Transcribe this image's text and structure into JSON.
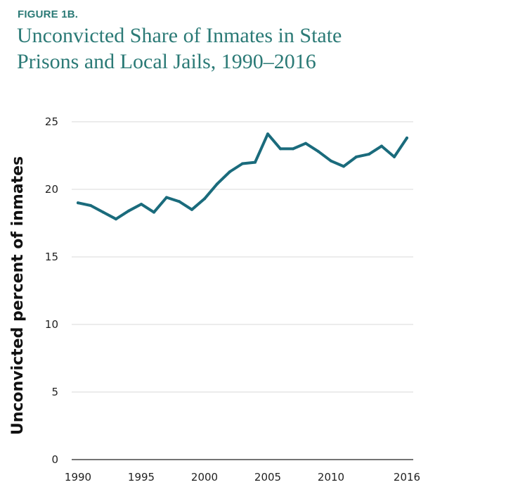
{
  "figure_label": "FIGURE 1B.",
  "title_lines": [
    "Unconvicted Share of Inmates in State",
    "Prisons and Local Jails, 1990–2016"
  ],
  "colors": {
    "title": "#2b7a76",
    "line": "#1a6b7c",
    "grid": "#d9d9d9",
    "axis": "#222222"
  },
  "chart_data": {
    "type": "line",
    "title": "Unconvicted Share of Inmates in State Prisons and Local Jails, 1990–2016",
    "xlabel": "",
    "ylabel": "Unconvicted percent of inmates",
    "xlim": [
      1990,
      2016
    ],
    "ylim": [
      0,
      25
    ],
    "grid": true,
    "x_ticks": [
      1990,
      1995,
      2000,
      2005,
      2010,
      2016
    ],
    "x_tick_labels": [
      "1990",
      "1995",
      "2000",
      "2005",
      "2010",
      "2016"
    ],
    "y_ticks": [
      0,
      5,
      10,
      15,
      20,
      25
    ],
    "y_tick_labels": [
      "0",
      "5",
      "10",
      "15",
      "20",
      "25"
    ],
    "x": [
      1990,
      1991,
      1992,
      1993,
      1994,
      1995,
      1996,
      1997,
      1998,
      1999,
      2000,
      2001,
      2002,
      2003,
      2004,
      2005,
      2006,
      2007,
      2008,
      2009,
      2010,
      2011,
      2012,
      2013,
      2014,
      2015,
      2016
    ],
    "series": [
      {
        "name": "Unconvicted share",
        "values": [
          19.0,
          18.8,
          18.3,
          17.8,
          18.4,
          18.9,
          18.3,
          19.4,
          19.1,
          18.5,
          19.3,
          20.4,
          21.3,
          21.9,
          22.0,
          24.1,
          23.0,
          23.0,
          23.4,
          22.8,
          22.1,
          21.7,
          22.4,
          22.6,
          23.2,
          22.4,
          23.8
        ]
      }
    ]
  }
}
